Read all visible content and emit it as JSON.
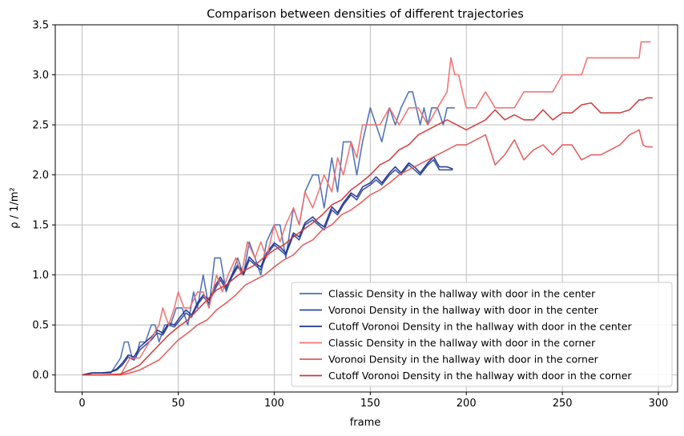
{
  "chart_data": {
    "type": "line",
    "title": "Comparison between densities of different trajectories",
    "xlabel": "frame",
    "ylabel": "ρ / 1/m²",
    "xlim": [
      -14,
      310
    ],
    "ylim": [
      -0.17,
      3.5
    ],
    "xticks": [
      0,
      50,
      100,
      150,
      200,
      250,
      300
    ],
    "yticks": [
      0.0,
      0.5,
      1.0,
      1.5,
      2.0,
      2.5,
      3.0,
      3.5
    ],
    "xtick_labels": [
      "0",
      "50",
      "100",
      "150",
      "200",
      "250",
      "300"
    ],
    "ytick_labels": [
      "0.0",
      "0.5",
      "1.0",
      "1.5",
      "2.0",
      "2.5",
      "3.0",
      "3.5"
    ],
    "grid": true,
    "legend_position": "lower-right",
    "series": [
      {
        "name": "Classic Density in the hallway with door in the center",
        "color": "#4a6fb5",
        "x": [
          0,
          5,
          10,
          15,
          20,
          22,
          24,
          26,
          28,
          30,
          33,
          36,
          38,
          40,
          43,
          46,
          49,
          52,
          55,
          58,
          60,
          63,
          66,
          69,
          72,
          75,
          78,
          81,
          84,
          87,
          90,
          93,
          96,
          100,
          103,
          106,
          110,
          113,
          116,
          120,
          123,
          126,
          130,
          133,
          136,
          140,
          143,
          146,
          150,
          153,
          156,
          160,
          163,
          166,
          170,
          172,
          174,
          176,
          178,
          180,
          182,
          185,
          188,
          190,
          192,
          194
        ],
        "y": [
          0.0,
          0.02,
          0.02,
          0.02,
          0.17,
          0.33,
          0.33,
          0.17,
          0.17,
          0.33,
          0.33,
          0.5,
          0.5,
          0.33,
          0.5,
          0.5,
          0.67,
          0.67,
          0.5,
          0.83,
          0.67,
          1.0,
          0.67,
          1.17,
          1.17,
          0.83,
          1.0,
          1.17,
          1.0,
          1.33,
          1.17,
          1.0,
          1.33,
          1.5,
          1.5,
          1.17,
          1.67,
          1.5,
          1.83,
          2.0,
          2.0,
          1.67,
          2.17,
          1.83,
          2.33,
          2.33,
          2.0,
          2.33,
          2.67,
          2.5,
          2.33,
          2.67,
          2.5,
          2.67,
          2.83,
          2.83,
          2.67,
          2.5,
          2.67,
          2.5,
          2.67,
          2.67,
          2.5,
          2.67,
          2.67,
          2.67
        ]
      },
      {
        "name": "Voronoi Density in the hallway with door in the center",
        "color": "#2e4a9e",
        "x": [
          0,
          5,
          10,
          15,
          18,
          21,
          24,
          27,
          30,
          33,
          36,
          39,
          42,
          45,
          48,
          51,
          54,
          57,
          60,
          63,
          66,
          69,
          72,
          75,
          78,
          81,
          84,
          87,
          90,
          93,
          96,
          100,
          103,
          106,
          110,
          113,
          116,
          120,
          123,
          126,
          130,
          133,
          136,
          140,
          143,
          146,
          150,
          153,
          156,
          160,
          163,
          166,
          170,
          173,
          176,
          180,
          183,
          186,
          190,
          193
        ],
        "y": [
          0.0,
          0.02,
          0.02,
          0.03,
          0.05,
          0.1,
          0.18,
          0.15,
          0.25,
          0.3,
          0.35,
          0.42,
          0.4,
          0.5,
          0.48,
          0.55,
          0.62,
          0.58,
          0.7,
          0.78,
          0.72,
          0.85,
          0.95,
          0.85,
          0.98,
          1.08,
          1.0,
          1.15,
          1.1,
          1.05,
          1.2,
          1.3,
          1.25,
          1.2,
          1.4,
          1.35,
          1.5,
          1.55,
          1.5,
          1.45,
          1.65,
          1.6,
          1.7,
          1.8,
          1.75,
          1.85,
          1.9,
          1.95,
          1.9,
          2.0,
          2.05,
          2.0,
          2.1,
          2.05,
          2.0,
          2.1,
          2.15,
          2.05,
          2.05,
          2.05
        ]
      },
      {
        "name": "Cutoff Voronoi Density in the hallway with door in the center",
        "color": "#22348c",
        "x": [
          0,
          5,
          10,
          15,
          18,
          21,
          24,
          27,
          30,
          33,
          36,
          39,
          42,
          45,
          48,
          51,
          54,
          57,
          60,
          63,
          66,
          69,
          72,
          75,
          78,
          81,
          84,
          87,
          90,
          93,
          96,
          100,
          103,
          106,
          110,
          113,
          116,
          120,
          123,
          126,
          130,
          133,
          136,
          140,
          143,
          146,
          150,
          153,
          156,
          160,
          163,
          166,
          170,
          173,
          176,
          180,
          183,
          186,
          190,
          193
        ],
        "y": [
          0.0,
          0.02,
          0.02,
          0.03,
          0.06,
          0.12,
          0.2,
          0.18,
          0.28,
          0.33,
          0.38,
          0.45,
          0.42,
          0.52,
          0.5,
          0.58,
          0.65,
          0.6,
          0.72,
          0.8,
          0.75,
          0.88,
          0.98,
          0.88,
          1.0,
          1.1,
          1.02,
          1.18,
          1.12,
          1.08,
          1.22,
          1.32,
          1.28,
          1.22,
          1.42,
          1.38,
          1.52,
          1.58,
          1.52,
          1.48,
          1.68,
          1.62,
          1.72,
          1.82,
          1.78,
          1.88,
          1.92,
          1.98,
          1.92,
          2.02,
          2.08,
          2.02,
          2.12,
          2.08,
          2.02,
          2.12,
          2.18,
          2.08,
          2.08,
          2.06
        ]
      },
      {
        "name": "Classic Density in the hallway with door in the corner",
        "color": "#f07070",
        "x": [
          0,
          10,
          20,
          25,
          30,
          35,
          40,
          42,
          45,
          48,
          50,
          53,
          56,
          60,
          63,
          66,
          70,
          73,
          76,
          80,
          83,
          86,
          90,
          93,
          96,
          100,
          103,
          106,
          110,
          113,
          116,
          120,
          123,
          126,
          130,
          133,
          136,
          140,
          143,
          146,
          150,
          155,
          160,
          165,
          170,
          175,
          180,
          185,
          190,
          192,
          194,
          196,
          198,
          200,
          205,
          210,
          215,
          220,
          225,
          230,
          235,
          240,
          245,
          250,
          255,
          260,
          263,
          266,
          270,
          275,
          280,
          285,
          290,
          291,
          293,
          296
        ],
        "y": [
          0.0,
          0.0,
          0.0,
          0.17,
          0.17,
          0.33,
          0.5,
          0.67,
          0.5,
          0.67,
          0.83,
          0.67,
          0.67,
          0.83,
          0.83,
          0.67,
          1.0,
          0.83,
          1.0,
          1.17,
          1.0,
          1.33,
          1.17,
          1.33,
          1.17,
          1.5,
          1.33,
          1.5,
          1.67,
          1.5,
          1.83,
          1.67,
          1.83,
          2.0,
          1.83,
          2.17,
          2.0,
          2.33,
          2.17,
          2.5,
          2.5,
          2.5,
          2.67,
          2.5,
          2.67,
          2.67,
          2.5,
          2.67,
          2.83,
          3.17,
          3.0,
          3.0,
          2.83,
          2.67,
          2.67,
          2.83,
          2.67,
          2.67,
          2.67,
          2.83,
          2.83,
          2.83,
          2.83,
          3.0,
          3.0,
          3.0,
          3.17,
          3.17,
          3.17,
          3.17,
          3.17,
          3.17,
          3.17,
          3.33,
          3.33,
          3.33
        ]
      },
      {
        "name": "Voronoi Density in the hallway with door in the corner",
        "color": "#e05a5a",
        "x": [
          0,
          10,
          20,
          25,
          30,
          35,
          40,
          45,
          50,
          55,
          60,
          65,
          70,
          75,
          80,
          85,
          90,
          95,
          100,
          105,
          110,
          115,
          120,
          125,
          130,
          135,
          140,
          145,
          150,
          155,
          160,
          165,
          170,
          175,
          180,
          185,
          190,
          195,
          200,
          205,
          210,
          215,
          220,
          225,
          230,
          235,
          240,
          245,
          250,
          255,
          260,
          265,
          270,
          275,
          280,
          285,
          290,
          292,
          294,
          297
        ],
        "y": [
          0.0,
          0.0,
          0.0,
          0.02,
          0.05,
          0.1,
          0.15,
          0.25,
          0.35,
          0.42,
          0.5,
          0.55,
          0.65,
          0.72,
          0.8,
          0.9,
          0.95,
          1.0,
          1.08,
          1.15,
          1.2,
          1.3,
          1.35,
          1.45,
          1.5,
          1.6,
          1.65,
          1.72,
          1.8,
          1.85,
          1.92,
          2.0,
          2.05,
          2.1,
          2.15,
          2.2,
          2.25,
          2.3,
          2.3,
          2.35,
          2.4,
          2.1,
          2.2,
          2.35,
          2.15,
          2.25,
          2.3,
          2.2,
          2.3,
          2.3,
          2.15,
          2.2,
          2.2,
          2.25,
          2.3,
          2.4,
          2.45,
          2.3,
          2.28,
          2.28
        ]
      },
      {
        "name": "Cutoff Voronoi Density in the hallway with door in the corner",
        "color": "#cc3b3b",
        "x": [
          0,
          10,
          20,
          25,
          30,
          35,
          40,
          45,
          50,
          55,
          60,
          65,
          70,
          75,
          80,
          85,
          90,
          95,
          100,
          105,
          110,
          115,
          120,
          125,
          130,
          135,
          140,
          145,
          150,
          155,
          160,
          165,
          170,
          175,
          180,
          185,
          190,
          195,
          200,
          205,
          210,
          215,
          220,
          225,
          230,
          235,
          240,
          245,
          250,
          255,
          260,
          265,
          270,
          275,
          280,
          285,
          290,
          292,
          294,
          297
        ],
        "y": [
          0.0,
          0.0,
          0.01,
          0.05,
          0.1,
          0.2,
          0.3,
          0.4,
          0.48,
          0.55,
          0.65,
          0.75,
          0.85,
          0.9,
          0.98,
          1.05,
          1.1,
          1.18,
          1.25,
          1.3,
          1.38,
          1.45,
          1.52,
          1.6,
          1.7,
          1.75,
          1.85,
          1.92,
          2.0,
          2.1,
          2.15,
          2.25,
          2.3,
          2.4,
          2.45,
          2.5,
          2.55,
          2.5,
          2.45,
          2.5,
          2.55,
          2.65,
          2.55,
          2.6,
          2.55,
          2.55,
          2.65,
          2.55,
          2.62,
          2.62,
          2.7,
          2.72,
          2.62,
          2.62,
          2.62,
          2.65,
          2.75,
          2.75,
          2.77,
          2.77
        ]
      }
    ]
  }
}
